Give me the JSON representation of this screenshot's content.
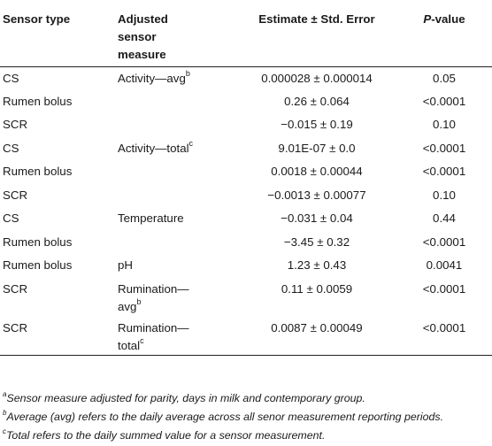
{
  "table": {
    "headers": {
      "sensor_type": "Sensor type",
      "adjusted_measure_line1": "Adjusted",
      "adjusted_measure_line2": "sensor",
      "adjusted_measure_line3": "measure",
      "estimate": "Estimate ± Std. Error",
      "pvalue_p": "P",
      "pvalue_rest": "-value"
    },
    "rows": [
      {
        "sensor": "CS",
        "measure": "Activity—avg",
        "measure_sup": "b",
        "measure2": "",
        "estimate": "0.000028 ± 0.000014",
        "p": "0.05"
      },
      {
        "sensor": "Rumen bolus",
        "measure": "",
        "measure_sup": "",
        "measure2": "",
        "estimate": "0.26 ± 0.064",
        "p": "<0.0001"
      },
      {
        "sensor": "SCR",
        "measure": "",
        "measure_sup": "",
        "measure2": "",
        "estimate": "−0.015 ± 0.19",
        "p": "0.10"
      },
      {
        "sensor": "CS",
        "measure": "Activity—total",
        "measure_sup": "c",
        "measure2": "",
        "estimate": "9.01E-07 ± 0.0",
        "p": "<0.0001"
      },
      {
        "sensor": "Rumen bolus",
        "measure": "",
        "measure_sup": "",
        "measure2": "",
        "estimate": "0.0018 ± 0.00044",
        "p": "<0.0001"
      },
      {
        "sensor": "SCR",
        "measure": "",
        "measure_sup": "",
        "measure2": "",
        "estimate": "−0.0013 ± 0.00077",
        "p": "0.10"
      },
      {
        "sensor": "CS",
        "measure": "Temperature",
        "measure_sup": "",
        "measure2": "",
        "estimate": "−0.031 ± 0.04",
        "p": "0.44"
      },
      {
        "sensor": "Rumen bolus",
        "measure": "",
        "measure_sup": "",
        "measure2": "",
        "estimate": "−3.45 ± 0.32",
        "p": "<0.0001"
      },
      {
        "sensor": "Rumen bolus",
        "measure": "pH",
        "measure_sup": "",
        "measure2": "",
        "estimate": "1.23 ± 0.43",
        "p": "0.0041"
      },
      {
        "sensor": "SCR",
        "measure": "Rumination—",
        "measure_sup": "",
        "measure2": "avg",
        "measure2_sup": "b",
        "estimate": "0.11 ± 0.0059",
        "p": "<0.0001"
      },
      {
        "sensor": "SCR",
        "measure": "Rumination—",
        "measure_sup": "",
        "measure2": "total",
        "measure2_sup": "c",
        "estimate": "0.0087 ± 0.00049",
        "p": "<0.0001"
      }
    ]
  },
  "notes": [
    {
      "sup": "a",
      "text": "Sensor measure adjusted for parity, days in milk and contemporary group."
    },
    {
      "sup": "b",
      "text": "Average (avg) refers to the daily average across all senor measurement reporting periods."
    },
    {
      "sup": "c",
      "text": "Total refers to the daily summed value for a sensor measurement."
    }
  ]
}
